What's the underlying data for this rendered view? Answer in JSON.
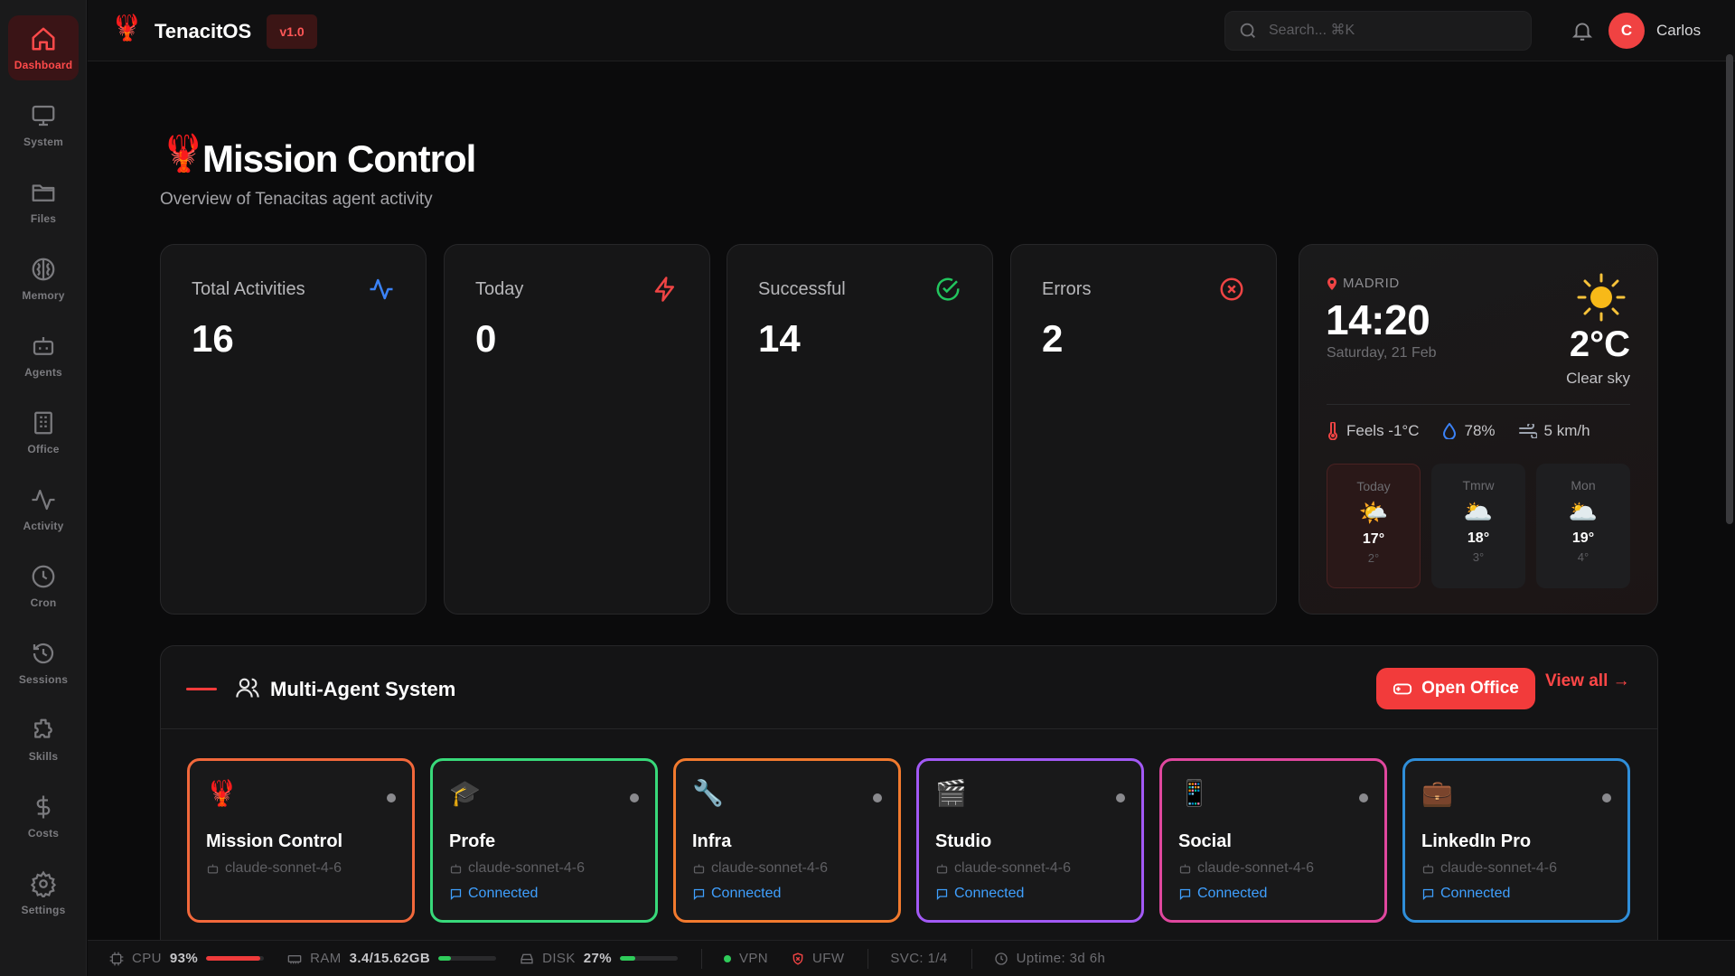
{
  "app": {
    "name": "TenacitOS",
    "version": "v1.0",
    "logo_icon": "🦞"
  },
  "sidebar": {
    "items": [
      {
        "label": "Dashboard",
        "icon": "home-icon",
        "active": true
      },
      {
        "label": "System",
        "icon": "monitor-icon"
      },
      {
        "label": "Files",
        "icon": "folder-icon"
      },
      {
        "label": "Memory",
        "icon": "brain-icon"
      },
      {
        "label": "Agents",
        "icon": "robot-icon"
      },
      {
        "label": "Office",
        "icon": "building-icon"
      },
      {
        "label": "Activity",
        "icon": "activity-icon"
      },
      {
        "label": "Cron",
        "icon": "clock-icon"
      },
      {
        "label": "Sessions",
        "icon": "history-icon"
      },
      {
        "label": "Skills",
        "icon": "puzzle-icon"
      },
      {
        "label": "Costs",
        "icon": "dollar-icon"
      },
      {
        "label": "Settings",
        "icon": "gear-icon"
      }
    ]
  },
  "topbar": {
    "search_placeholder": "Search... ⌘K",
    "user": {
      "initial": "C",
      "name": "Carlos"
    }
  },
  "header": {
    "icon": "🦞",
    "title": "Mission Control",
    "subtitle": "Overview of Tenacitas agent activity"
  },
  "stats": [
    {
      "label": "Total Activities",
      "value": "16",
      "icon": "activity-icon",
      "color": "#3b82f6"
    },
    {
      "label": "Today",
      "value": "0",
      "icon": "lightning-icon",
      "color": "#ef4444"
    },
    {
      "label": "Successful",
      "value": "14",
      "icon": "check-circle-icon",
      "color": "#22c55e"
    },
    {
      "label": "Errors",
      "value": "2",
      "icon": "x-circle-icon",
      "color": "#ef4444"
    }
  ],
  "weather": {
    "location": "MADRID",
    "time": "14:20",
    "date": "Saturday, 21 Feb",
    "temp": "2°C",
    "description": "Clear sky",
    "feels": "Feels -1°C",
    "humidity": "78%",
    "wind": "5 km/h",
    "forecast": [
      {
        "day": "Today",
        "icon": "🌤️",
        "hi": "17°",
        "lo": "2°"
      },
      {
        "day": "Tmrw",
        "icon": "🌥️",
        "hi": "18°",
        "lo": "3°"
      },
      {
        "day": "Mon",
        "icon": "🌥️",
        "hi": "19°",
        "lo": "4°"
      }
    ]
  },
  "agents_section": {
    "title": "Multi-Agent System",
    "open_office": "Open Office",
    "view_all": "View all →",
    "agents": [
      {
        "name": "Mission Control",
        "emoji": "🦞",
        "model": "claude-sonnet-4-6",
        "status": "",
        "color": "#f2683b"
      },
      {
        "name": "Profe",
        "emoji": "🎓",
        "model": "claude-sonnet-4-6",
        "status": "Connected",
        "color": "#38d97a"
      },
      {
        "name": "Infra",
        "emoji": "🔧",
        "model": "claude-sonnet-4-6",
        "status": "Connected",
        "color": "#f27a2e"
      },
      {
        "name": "Studio",
        "emoji": "🎬",
        "model": "claude-sonnet-4-6",
        "status": "Connected",
        "color": "#a259f5"
      },
      {
        "name": "Social",
        "emoji": "📱",
        "model": "claude-sonnet-4-6",
        "status": "Connected",
        "color": "#e0479e"
      },
      {
        "name": "LinkedIn Pro",
        "emoji": "💼",
        "model": "claude-sonnet-4-6",
        "status": "Connected",
        "color": "#2f8ed9"
      }
    ]
  },
  "statusbar": {
    "cpu_label": "CPU",
    "cpu_value": "93%",
    "cpu_pct": 93,
    "ram_label": "RAM",
    "ram_value": "3.4/15.62GB",
    "ram_pct": 22,
    "disk_label": "DISK",
    "disk_value": "27%",
    "disk_pct": 27,
    "vpn": "VPN",
    "ufw": "UFW",
    "svc": "SVC: 1/4",
    "uptime": "Uptime: 3d 6h"
  }
}
